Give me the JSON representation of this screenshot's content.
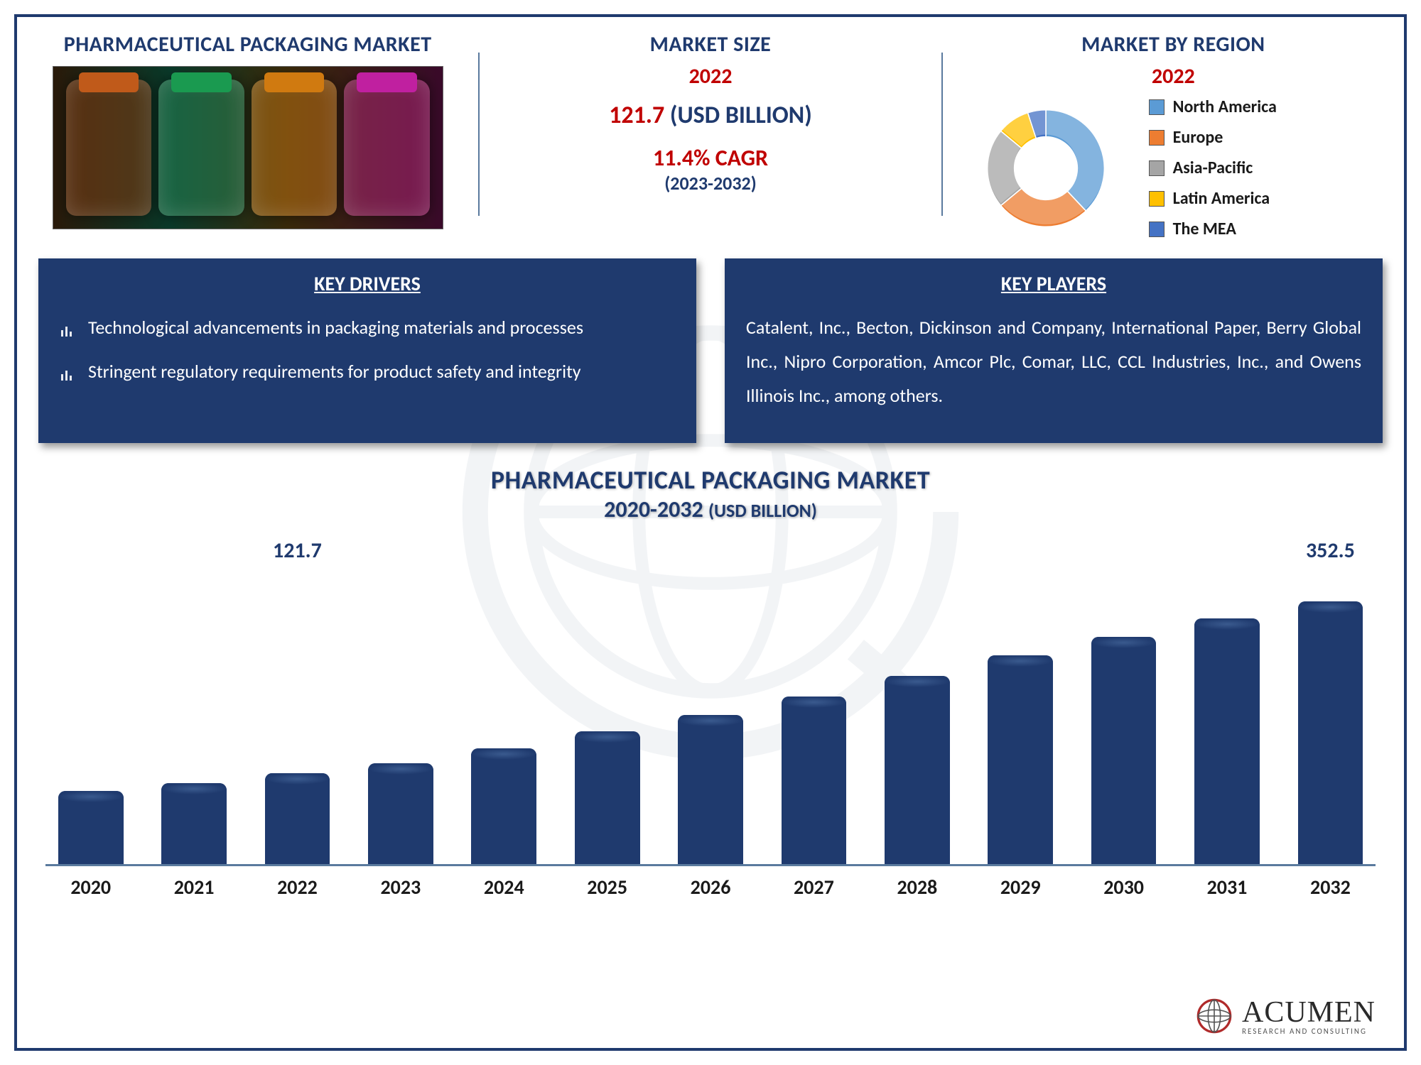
{
  "header": {
    "title_left": "PHARMACEUTICAL PACKAGING MARKET",
    "title_mid": "MARKET SIZE",
    "title_right": "MARKET BY REGION",
    "year": "2022",
    "size_value": "121.7",
    "size_unit": "(USD BILLION)",
    "cagr": "11.4% CAGR",
    "cagr_period": "(2023-2032)"
  },
  "region_chart": {
    "type": "donut",
    "slices": [
      {
        "label": "North America",
        "value": 38,
        "color": "#5b9bd5"
      },
      {
        "label": "Europe",
        "value": 26,
        "color": "#ed7d31"
      },
      {
        "label": "Asia-Pacific",
        "value": 22,
        "color": "#a5a5a5"
      },
      {
        "label": "Latin America",
        "value": 9,
        "color": "#ffc000"
      },
      {
        "label": "The MEA",
        "value": 5,
        "color": "#4472c4"
      }
    ],
    "inner_radius": 0.5,
    "background": "#ffffff"
  },
  "drivers": {
    "title": "KEY DRIVERS",
    "items": [
      "Technological advancements in packaging materials and processes",
      "Stringent regulatory requirements for product safety and integrity"
    ]
  },
  "players": {
    "title": "KEY PLAYERS",
    "text": "Catalent, Inc., Becton, Dickinson and Company, International Paper, Berry Global Inc., Nipro Corporation, Amcor Plc, Comar, LLC, CCL Industries, Inc., and Owens Illinois Inc., among others."
  },
  "bar_chart": {
    "type": "bar",
    "title": "PHARMACEUTICAL PACKAGING MARKET",
    "subtitle_years": "2020-2032",
    "subtitle_unit": "(USD BILLION)",
    "categories": [
      "2020",
      "2021",
      "2022",
      "2023",
      "2024",
      "2025",
      "2026",
      "2027",
      "2028",
      "2029",
      "2030",
      "2031",
      "2032"
    ],
    "values": [
      98,
      109,
      121.7,
      135,
      155,
      178,
      200,
      225,
      252,
      280,
      305,
      330,
      352.5
    ],
    "show_value_indexes": [
      2,
      12
    ],
    "ylim": [
      0,
      400
    ],
    "bar_color": "#1f3a6e",
    "bar_radius": 10,
    "axis_color": "#5a7a9e",
    "value_label_color": "#1f3a6e",
    "value_label_fontsize": 30,
    "xlabel_fontsize": 28,
    "xlabel_color": "#1a1a1a",
    "title_color": "#1f3a6e",
    "background": "#ffffff"
  },
  "logo": {
    "main": "ACUMEN",
    "sub": "RESEARCH AND CONSULTING"
  },
  "colors": {
    "frame_border": "#1f3a6e",
    "box_bg": "#1f3a6e",
    "box_text": "#ffffff",
    "accent_red": "#c00000"
  }
}
